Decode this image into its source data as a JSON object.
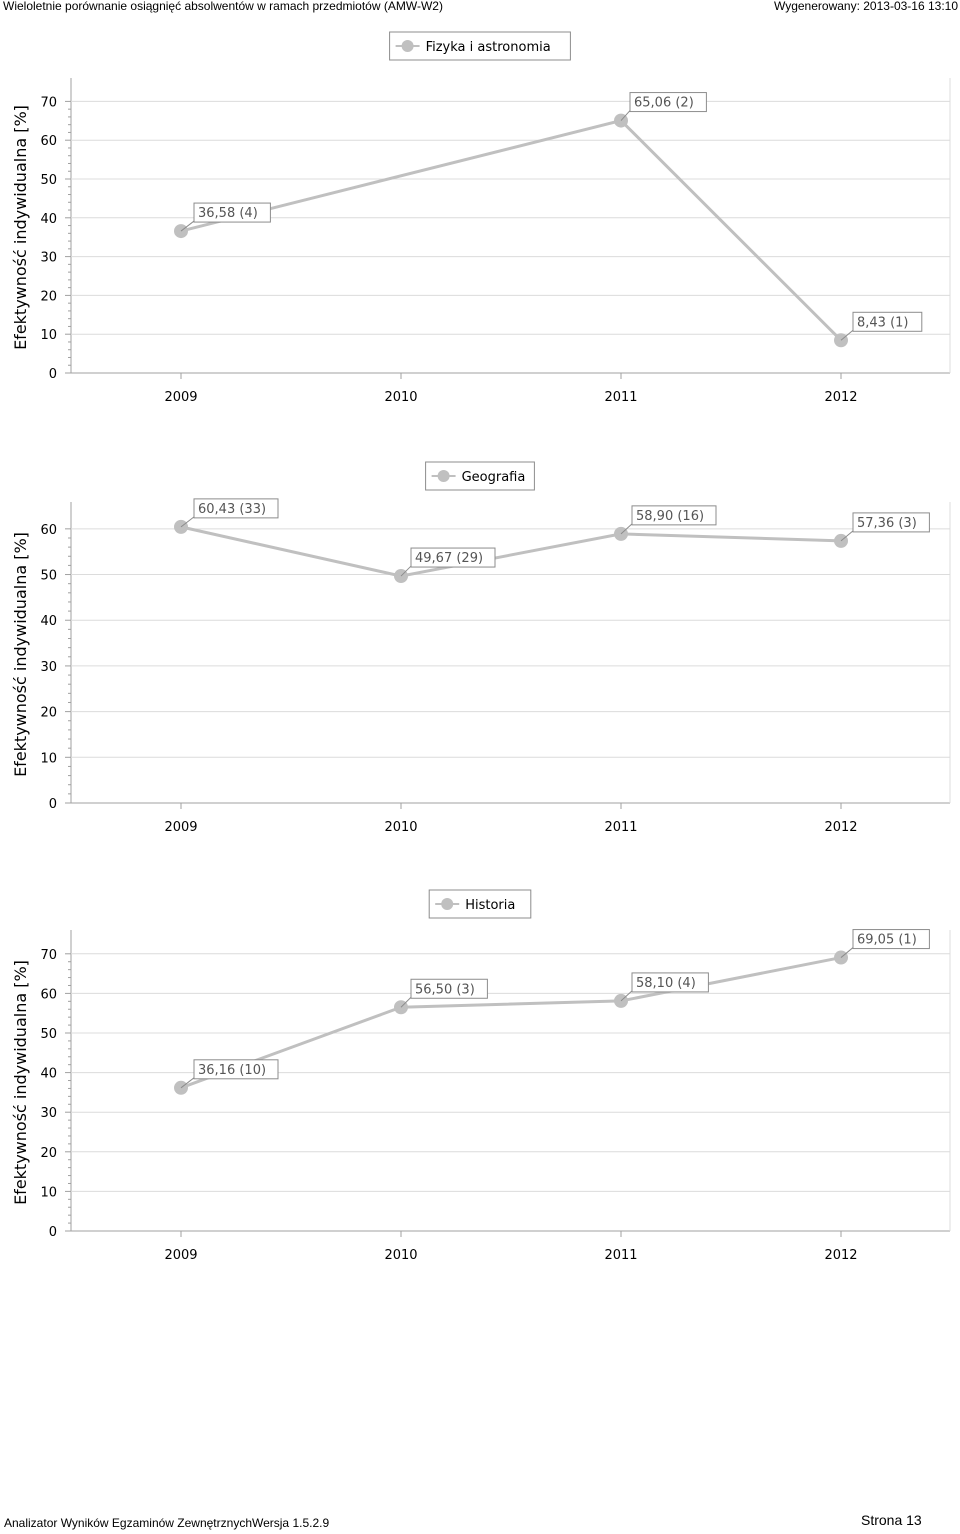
{
  "header": {
    "title": "Wieloletnie porównanie osiągnięć absolwentów w ramach przedmiotów (AMW-W2)",
    "generated": "Wygenerowany: 2013-03-16 13:10"
  },
  "footer": {
    "app": "Analizator Wyników Egzaminów ZewnętrznychWersja 1.5.2.9",
    "page": "Strona 13"
  },
  "colors": {
    "series": "#c0c0c0",
    "grid": "#dcdcdc",
    "axis": "#a0a0a0",
    "label_border": "#8c8c8c"
  },
  "chart_data": [
    {
      "type": "line",
      "legend": "Fizyka i astronomia",
      "ylabel": "Efektywność indywidualna [%]",
      "categories": [
        "2009",
        "2010",
        "2011",
        "2012"
      ],
      "values": [
        36.58,
        null,
        65.06,
        8.43
      ],
      "labels": [
        "36,58 (4)",
        "",
        "65,06 (2)",
        "8,43 (1)"
      ],
      "yticks": [
        0,
        10,
        20,
        30,
        40,
        50,
        60,
        70
      ],
      "ylim": [
        0,
        70
      ],
      "grid": true
    },
    {
      "type": "line",
      "legend": "Geografia",
      "ylabel": "Efektywność indywidualna [%]",
      "categories": [
        "2009",
        "2010",
        "2011",
        "2012"
      ],
      "values": [
        60.43,
        49.67,
        58.9,
        57.36
      ],
      "labels": [
        "60,43 (33)",
        "49,67 (29)",
        "58,90 (16)",
        "57,36 (3)"
      ],
      "yticks": [
        0,
        10,
        20,
        30,
        40,
        50,
        60
      ],
      "ylim": [
        0,
        60
      ],
      "grid": true
    },
    {
      "type": "line",
      "legend": "Historia",
      "ylabel": "Efektywność indywidualna [%]",
      "categories": [
        "2009",
        "2010",
        "2011",
        "2012"
      ],
      "values": [
        36.16,
        56.5,
        58.1,
        69.05
      ],
      "labels": [
        "36,16 (10)",
        "56,50 (3)",
        "58,10 (4)",
        "69,05 (1)"
      ],
      "yticks": [
        0,
        10,
        20,
        30,
        40,
        50,
        60,
        70
      ],
      "ylim": [
        0,
        70
      ],
      "grid": true
    }
  ]
}
